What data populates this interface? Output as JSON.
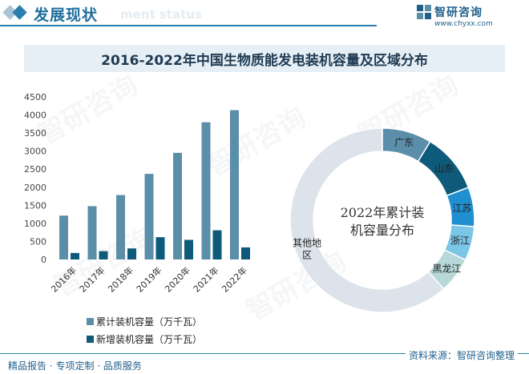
{
  "header": {
    "title": "发展现状",
    "subtitle": "ment status"
  },
  "logo": {
    "name": "智研咨询",
    "url": "www.chyxx.com"
  },
  "title": "2016-2022年中国生物质能发电装机容量及区域分布",
  "watermark": "智研咨询",
  "colors": {
    "bar_cumulative": "#5b8ea8",
    "bar_new": "#0d5a7a",
    "brand": "#1f5f8b"
  },
  "legend": {
    "cumulative": "累计装机容量（万千瓦）",
    "new": "新增装机容量（万千瓦）"
  },
  "chart_data": [
    {
      "type": "bar",
      "categories": [
        "2016年",
        "2017年",
        "2018年",
        "2019年",
        "2020年",
        "2021年",
        "2022年"
      ],
      "series": [
        {
          "name": "累计装机容量（万千瓦）",
          "values": [
            1214,
            1476,
            1784,
            2369,
            2952,
            3798,
            4132
          ]
        },
        {
          "name": "新增装机容量（万千瓦）",
          "values": [
            180,
            230,
            306,
            617,
            543,
            808,
            334
          ]
        }
      ],
      "yticks": [
        0,
        500,
        1000,
        1500,
        2000,
        2500,
        3000,
        3500,
        4000,
        4500
      ],
      "ylim": [
        0,
        4500
      ]
    },
    {
      "type": "pie",
      "donut": true,
      "center_label": "2022年累计装机容量分布",
      "center_label_lines": [
        "2022年累计装",
        "机容量分布"
      ],
      "labels": [
        "广东",
        "山东",
        "江苏",
        "浙江",
        "黑龙江",
        "其他地区"
      ],
      "label_lines": [
        [
          "广东"
        ],
        [
          "山东"
        ],
        [
          "江苏"
        ],
        [
          "浙江"
        ],
        [
          "黑龙江"
        ],
        [
          "其他地",
          "区"
        ]
      ],
      "values": [
        8.7,
        10.5,
        6.9,
        6.0,
        6.3,
        61.6
      ],
      "colors": [
        "#5b8ea8",
        "#0d5a7a",
        "#1f8fd0",
        "#7bc6e6",
        "#b7d7d8",
        "#dce3ea"
      ]
    }
  ],
  "footer": {
    "left": "精品报告 · 专项定制 · 品质服务",
    "right": "资料来源：智研咨询整理"
  }
}
